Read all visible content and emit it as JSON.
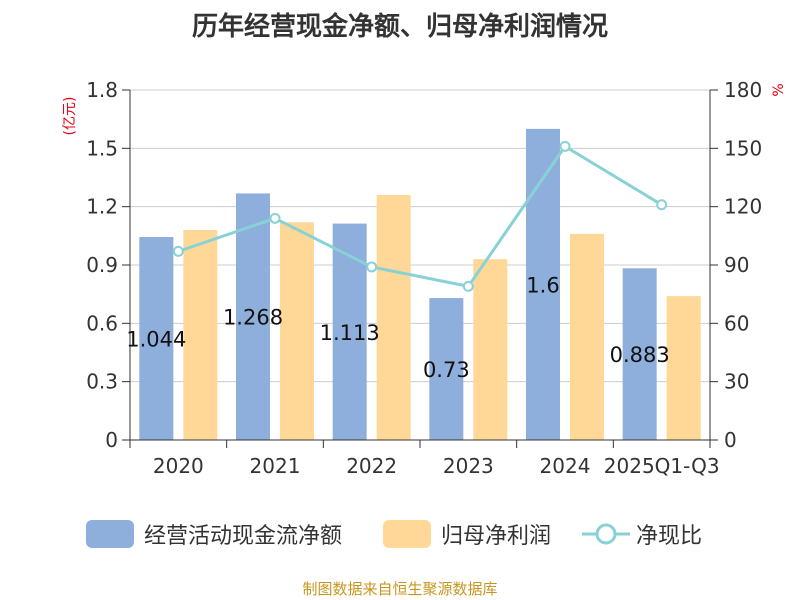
{
  "title": "历年经营现金净额、归母净利润情况",
  "source": "制图数据来自恒生聚源数据库",
  "chart_data": {
    "type": "bar",
    "title": "历年经营现金净额、归母净利润情况",
    "categories": [
      "2020",
      "2021",
      "2022",
      "2023",
      "2024",
      "2025Q1-Q3"
    ],
    "y_left": {
      "unit": "(亿元)",
      "ylim": [
        0,
        1.8
      ],
      "ticks": [
        "0",
        "0.3",
        "0.6",
        "0.9",
        "1.2",
        "1.5",
        "1.8"
      ]
    },
    "y_right": {
      "unit": "%",
      "ylim": [
        0,
        180
      ],
      "ticks": [
        "0",
        "30",
        "60",
        "90",
        "120",
        "150",
        "180"
      ]
    },
    "series": [
      {
        "name": "经营活动现金流净额",
        "type": "bar",
        "axis": "left",
        "color": "#8eaedb",
        "values": [
          1.044,
          1.268,
          1.113,
          0.73,
          1.6,
          0.883
        ],
        "labels": [
          "1.044",
          "1.268",
          "1.113",
          "0.73",
          "1.6",
          "0.883"
        ]
      },
      {
        "name": "归母净利润",
        "type": "bar",
        "axis": "left",
        "color": "#ffd898",
        "values": [
          1.08,
          1.12,
          1.26,
          0.93,
          1.06,
          0.74
        ]
      },
      {
        "name": "净现比",
        "type": "line",
        "axis": "right",
        "color": "#88d2d6",
        "values": [
          97,
          114,
          89,
          79,
          151,
          121
        ]
      }
    ],
    "grid": true,
    "legend_position": "bottom"
  }
}
